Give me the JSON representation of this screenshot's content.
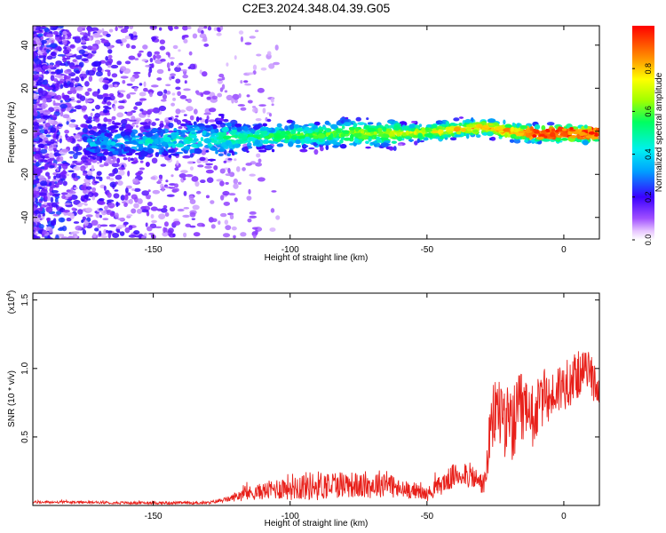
{
  "figure": {
    "title": "C2E3.2024.348.04.39.G05"
  },
  "chart_data": [
    {
      "type": "heatmap",
      "xlabel": "Height of straight line (km)",
      "ylabel": "Frequency (Hz)",
      "xlim": [
        -194,
        13
      ],
      "ylim": [
        -50,
        49
      ],
      "x_ticks": [
        -150,
        -100,
        -50,
        0
      ],
      "x_tick_labels": [
        "-150",
        "-100",
        "-50",
        "0"
      ],
      "y_ticks": [
        -40,
        -20,
        0,
        20,
        40
      ],
      "y_tick_labels": [
        "-40",
        "-20",
        "0",
        "20",
        "40"
      ],
      "colorbar": {
        "label": "Normalized spectral amplitude",
        "range": [
          0,
          1
        ],
        "ticks": [
          0.0,
          0.2,
          0.4,
          0.6,
          0.8
        ],
        "tick_labels": [
          "0.0",
          "0.2",
          "0.4",
          "0.6",
          "0.8"
        ],
        "colormap": "rainbow (violet to red)"
      },
      "ridge": {
        "description": "dominant frequency track",
        "points": [
          [
            -160,
            -5
          ],
          [
            -140,
            -4
          ],
          [
            -120,
            -3
          ],
          [
            -100,
            -2
          ],
          [
            -80,
            -1
          ],
          [
            -60,
            -1
          ],
          [
            -45,
            0
          ],
          [
            -30,
            2
          ],
          [
            -20,
            0
          ],
          [
            -10,
            -1
          ],
          [
            0,
            -1
          ],
          [
            12,
            -1
          ]
        ]
      },
      "grid": false
    },
    {
      "type": "line",
      "xlabel": "Height of straight line (km)",
      "ylabel": "SNR (10 * v/v)",
      "y_multiplier_label": "(x10",
      "y_multiplier_exp": "4",
      "xlim": [
        -194,
        13
      ],
      "ylim": [
        0,
        1.55
      ],
      "x_ticks": [
        -150,
        -100,
        -50,
        0
      ],
      "x_tick_labels": [
        "-150",
        "-100",
        "-50",
        "0"
      ],
      "y_ticks": [
        0.5,
        1.0,
        1.5
      ],
      "y_tick_labels": [
        "0.5",
        "1.0",
        "1.5"
      ],
      "series": [
        {
          "color": "#e8201a",
          "envelope": {
            "x": [
              -194,
              -175,
              -160,
              -145,
              -130,
              -122,
              -118,
              -110,
              -100,
              -90,
              -80,
              -72,
              -65,
              -60,
              -55,
              -50,
              -45,
              -40,
              -36,
              -32,
              -29,
              -27,
              -25,
              -22,
              -20,
              -17,
              -15,
              -13,
              -10,
              -7,
              -5,
              -2,
              0,
              3,
              5,
              7,
              9,
              11,
              12
            ],
            "base": [
              0.02,
              0.02,
              0.015,
              0.015,
              0.015,
              0.04,
              0.06,
              0.08,
              0.1,
              0.1,
              0.12,
              0.1,
              0.13,
              0.08,
              0.09,
              0.06,
              0.12,
              0.18,
              0.2,
              0.15,
              0.12,
              0.4,
              0.6,
              0.55,
              0.45,
              0.5,
              0.55,
              0.48,
              0.6,
              0.72,
              0.7,
              0.78,
              0.8,
              0.85,
              0.88,
              0.92,
              0.95,
              0.85,
              0.8
            ],
            "amp": [
              0.02,
              0.015,
              0.02,
              0.02,
              0.02,
              0.04,
              0.1,
              0.12,
              0.2,
              0.22,
              0.2,
              0.18,
              0.22,
              0.15,
              0.12,
              0.1,
              0.15,
              0.18,
              0.2,
              0.18,
              0.15,
              0.45,
              0.55,
              0.6,
              0.55,
              0.6,
              0.7,
              0.55,
              0.45,
              0.4,
              0.35,
              0.4,
              0.35,
              0.4,
              0.35,
              0.3,
              0.25,
              0.35,
              0.2
            ]
          }
        }
      ],
      "grid": false
    }
  ]
}
